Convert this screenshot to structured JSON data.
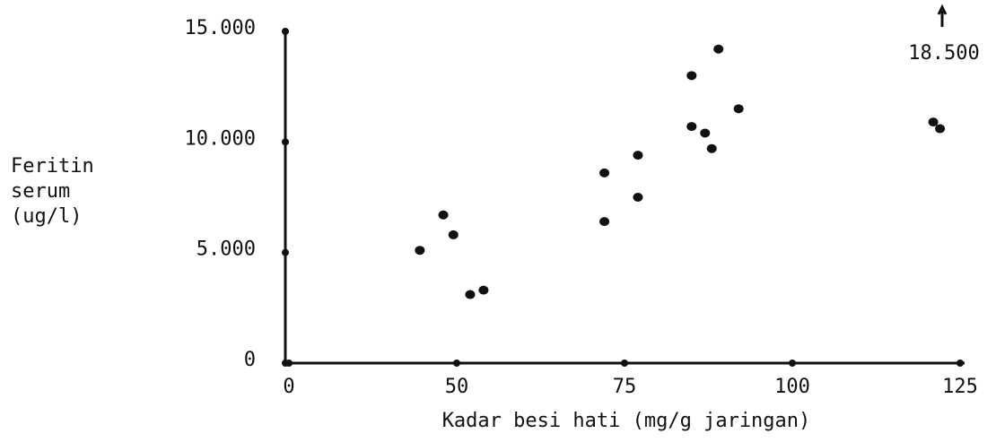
{
  "chart_data": {
    "type": "scatter",
    "xlabel": "Kadar besi hati (mg/g jaringan)",
    "ylabel": [
      "Feritin",
      "serum",
      "(ug/l)"
    ],
    "annotation": "18.500",
    "color": "#111111",
    "xlim": [
      0,
      125
    ],
    "xticks": [
      0,
      50,
      75,
      100,
      125
    ],
    "ylim": [
      0,
      15000
    ],
    "yticks": [
      0,
      {
        "value": 5000,
        "label": "5.000"
      },
      {
        "value": 10000,
        "label": "10.000"
      },
      {
        "value": 15000,
        "label": "15.000"
      }
    ],
    "x": [
      39,
      46,
      49,
      52,
      54,
      72,
      72,
      77,
      77,
      85,
      85,
      87,
      88,
      89,
      92,
      121,
      122
    ],
    "y": [
      5100,
      6700,
      5800,
      3100,
      3300,
      6400,
      8600,
      7500,
      9400,
      13000,
      10700,
      10400,
      9700,
      14200,
      11500,
      10900,
      10600
    ]
  }
}
